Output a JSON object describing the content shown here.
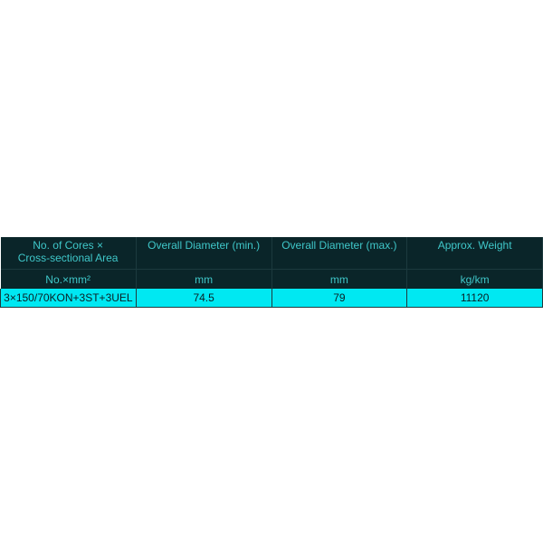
{
  "table": {
    "headers": [
      "No. of Cores × Cross-sectional Area",
      "Overall Diameter (min.)",
      "Overall Diameter (max.)",
      "Approx. Weight"
    ],
    "units": [
      "No.×mm²",
      "mm",
      "mm",
      "kg/km"
    ],
    "rows": [
      [
        "3×150/70KON+3ST+3UEL",
        "74.5",
        "79",
        "11120"
      ]
    ]
  },
  "colors": {
    "header_bg": "#0a2529",
    "header_text": "#3fc7c9",
    "row_bg": "#00e8f2"
  }
}
